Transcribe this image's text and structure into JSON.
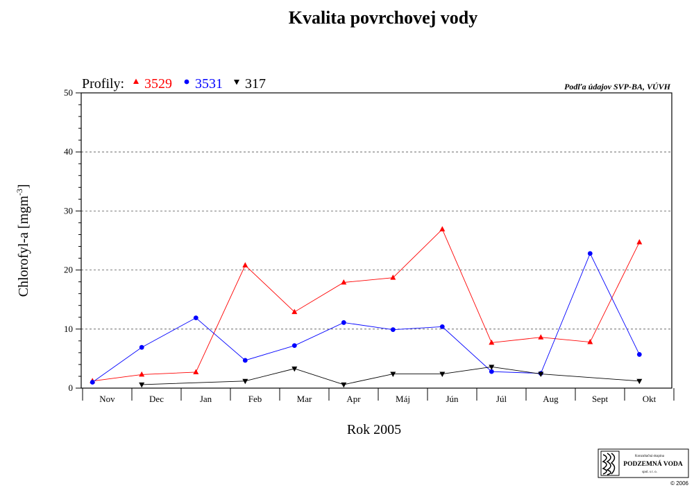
{
  "chart_data": {
    "type": "line",
    "title": "Kvalita povrchovej vody",
    "source_note": "Podľa údajov SVP-BA, VÚVH",
    "xlabel": "Rok 2005",
    "ylabel_main": "Chlorofyl-a [mgm",
    "ylabel_sup": "-3",
    "ylabel_end": "]",
    "legend_prefix": "Profily:",
    "categories": [
      "Nov",
      "Dec",
      "Jan",
      "Feb",
      "Mar",
      "Apr",
      "Máj",
      "Jún",
      "Júl",
      "Aug",
      "Sept",
      "Okt"
    ],
    "ylim": [
      0,
      50
    ],
    "yticks": [
      0,
      10,
      20,
      30,
      40,
      50
    ],
    "grid": "dashed horizontal at major ticks",
    "legend_position": "top-left",
    "series": [
      {
        "name": "3529",
        "color": "#ff0000",
        "marker": "triangle-up",
        "points": [
          [
            0.2,
            1.2
          ],
          [
            1.2,
            2.3
          ],
          [
            2.3,
            2.7
          ],
          [
            3.3,
            20.8
          ],
          [
            4.3,
            12.9
          ],
          [
            5.3,
            17.9
          ],
          [
            6.3,
            18.7
          ],
          [
            7.3,
            26.9
          ],
          [
            8.3,
            7.7
          ],
          [
            9.3,
            8.6
          ],
          [
            10.3,
            7.8
          ],
          [
            11.3,
            24.7
          ]
        ]
      },
      {
        "name": "3531",
        "color": "#0000ff",
        "marker": "circle",
        "points": [
          [
            0.2,
            1.0
          ],
          [
            1.2,
            6.9
          ],
          [
            2.3,
            11.9
          ],
          [
            3.3,
            4.7
          ],
          [
            4.3,
            7.2
          ],
          [
            5.3,
            11.1
          ],
          [
            6.3,
            9.9
          ],
          [
            7.3,
            10.4
          ],
          [
            8.3,
            2.8
          ],
          [
            9.3,
            2.5
          ],
          [
            10.3,
            22.8
          ],
          [
            11.3,
            5.7
          ]
        ]
      },
      {
        "name": "317",
        "color": "#000000",
        "marker": "triangle-down",
        "points": [
          [
            1.2,
            0.6
          ],
          [
            3.3,
            1.2
          ],
          [
            4.3,
            3.3
          ],
          [
            5.3,
            0.6
          ],
          [
            6.3,
            2.4
          ],
          [
            7.3,
            2.4
          ],
          [
            8.3,
            3.6
          ],
          [
            9.3,
            2.4
          ],
          [
            11.3,
            1.2
          ]
        ]
      }
    ]
  },
  "logo": {
    "line1": "Konzultačná skupina",
    "line2": "PODZEMNÁ VODA",
    "line3": "spol. s r. o.",
    "copyright": "© 2006"
  }
}
